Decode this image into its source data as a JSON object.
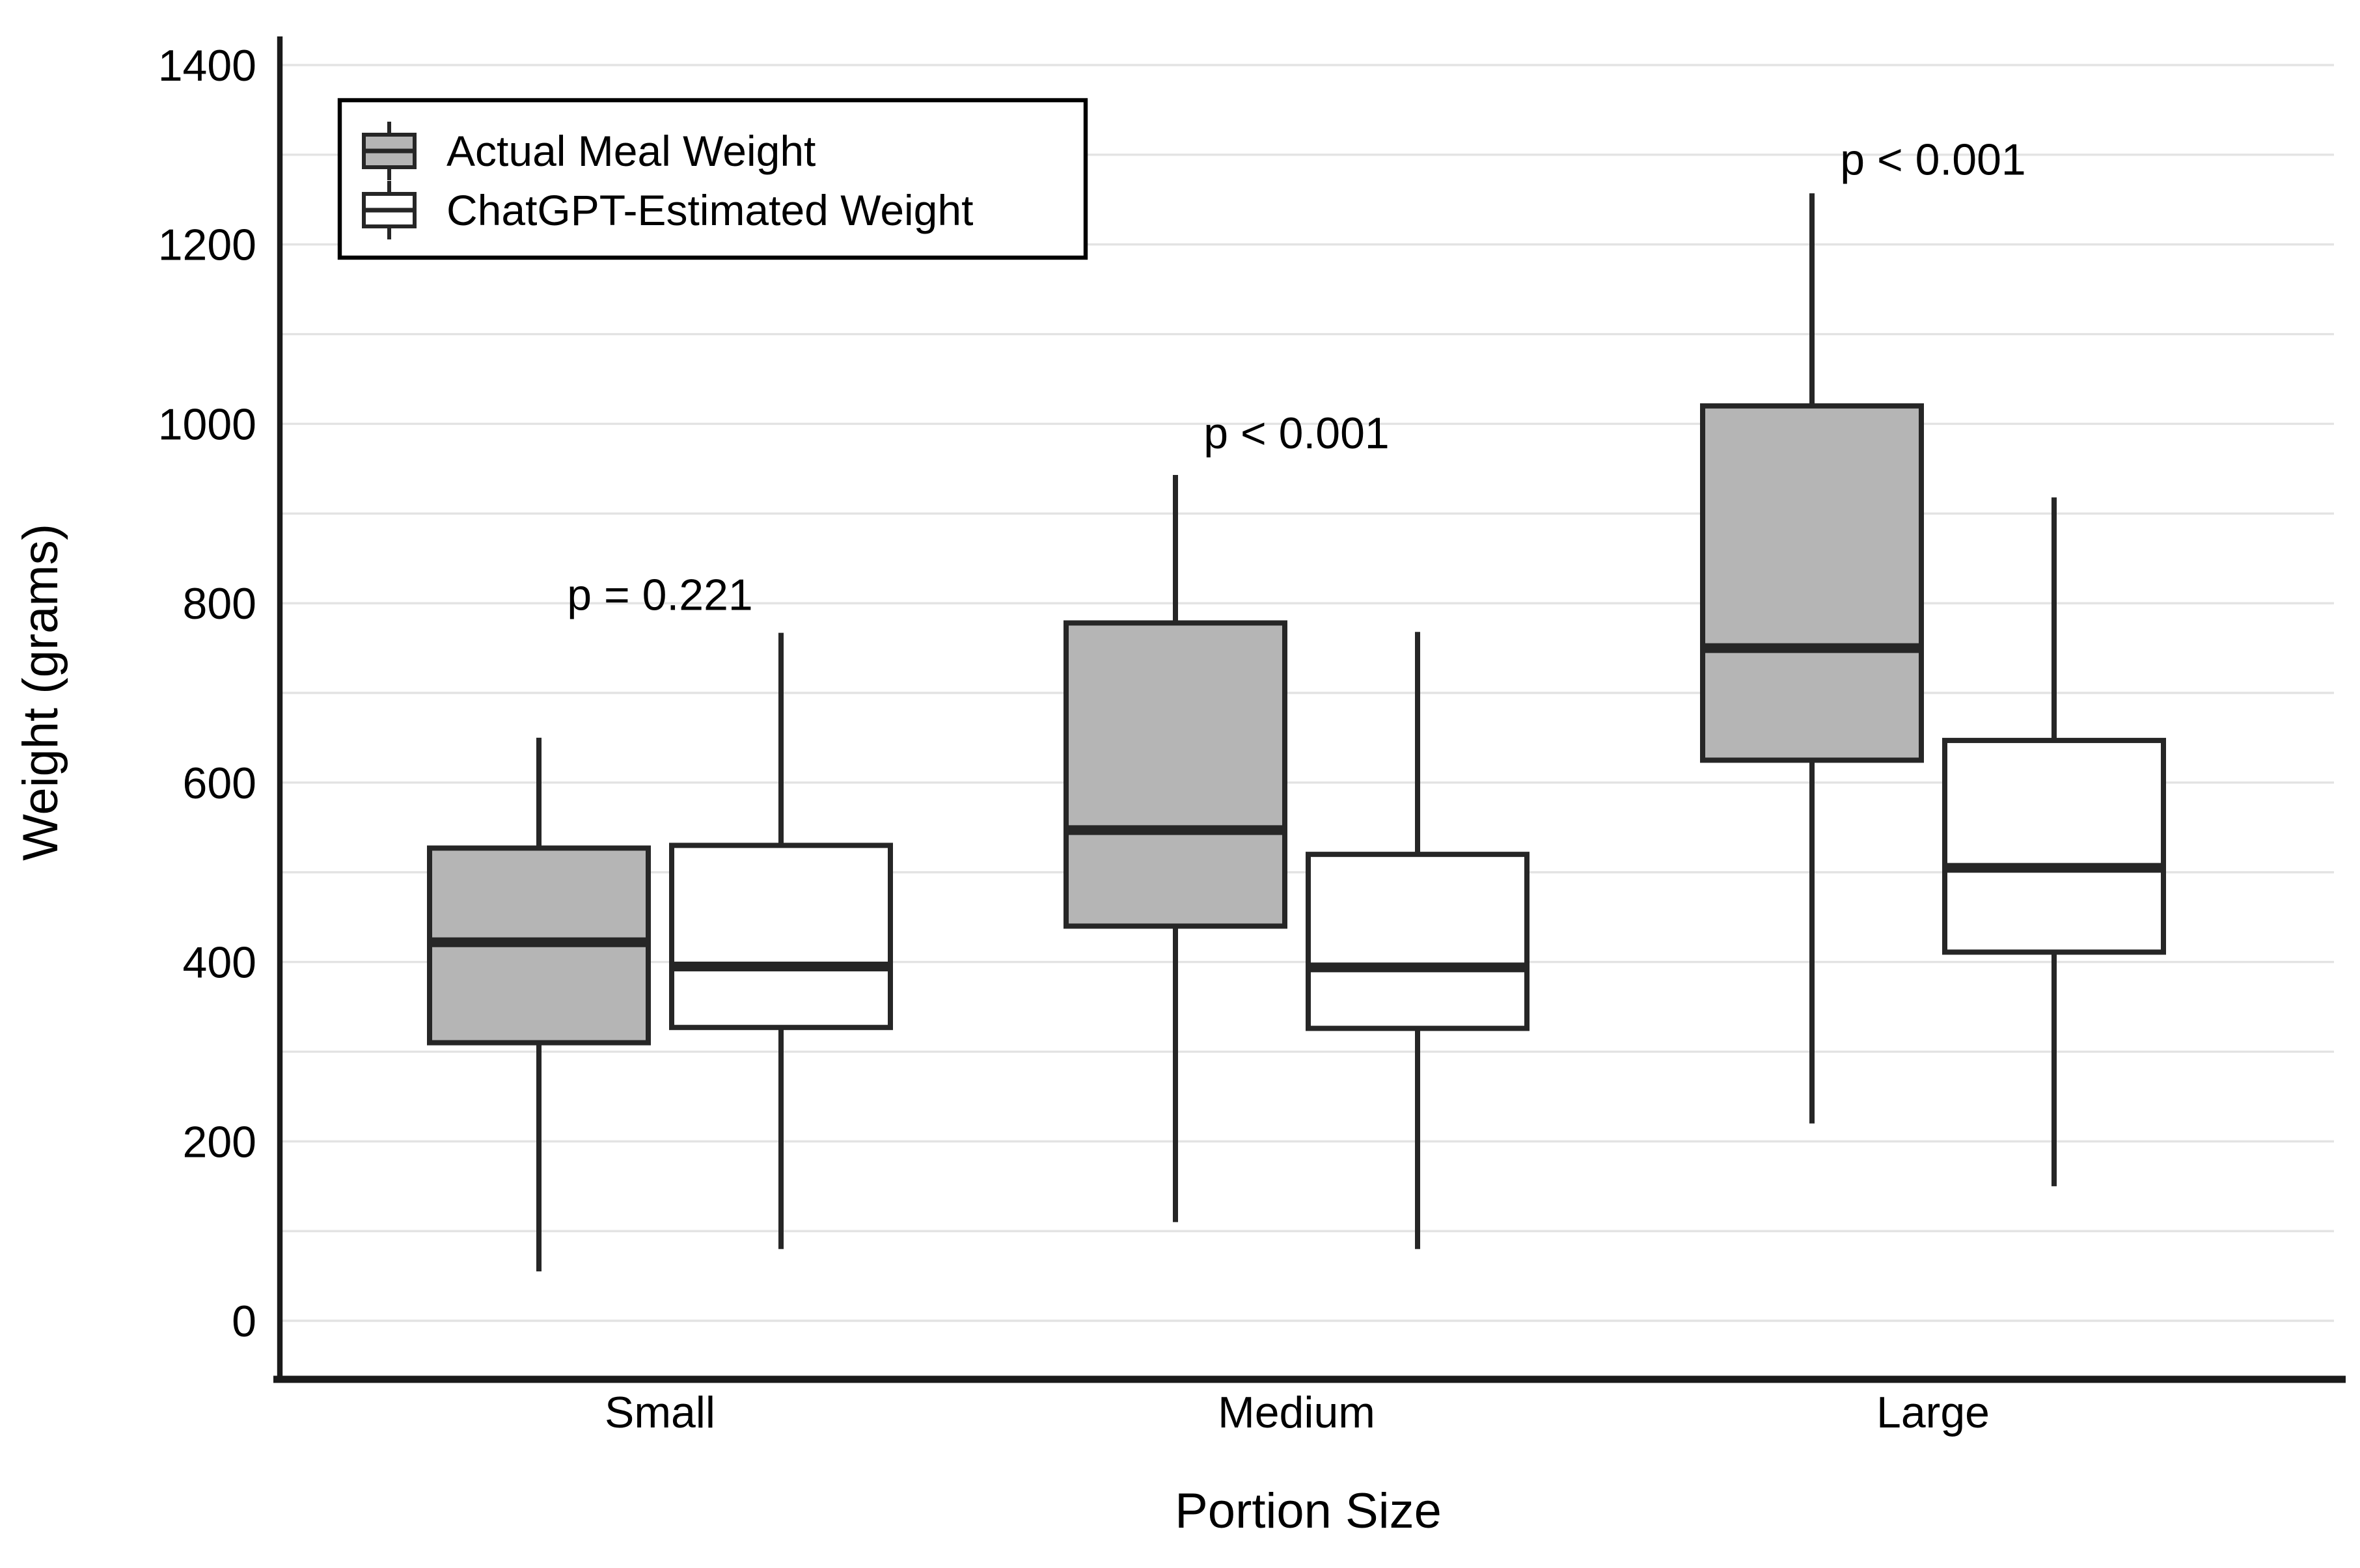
{
  "chart_data": {
    "type": "boxplot",
    "title": "",
    "xlabel": "Portion Size",
    "ylabel": "Weight (grams)",
    "ylim": [
      0,
      1400
    ],
    "y_ticks": [
      0,
      200,
      400,
      600,
      800,
      1000,
      1200,
      1400
    ],
    "gridline_interval": 100,
    "grid": "horizontal",
    "legend_position": "top-left",
    "categories": [
      "Small",
      "Medium",
      "Large"
    ],
    "series": [
      {
        "name": "Actual Meal Weight",
        "fill": "#b5b5b5",
        "boxes": [
          {
            "category": "Small",
            "whisker_low": 55,
            "q1": 310,
            "median": 422,
            "q3": 527,
            "whisker_high": 650
          },
          {
            "category": "Medium",
            "whisker_low": 110,
            "q1": 440,
            "median": 547,
            "q3": 778,
            "whisker_high": 943
          },
          {
            "category": "Large",
            "whisker_low": 220,
            "q1": 625,
            "median": 750,
            "q3": 1020,
            "whisker_high": 1257
          }
        ]
      },
      {
        "name": "ChatGPT-Estimated Weight",
        "fill": "#ffffff",
        "boxes": [
          {
            "category": "Small",
            "whisker_low": 80,
            "q1": 327,
            "median": 395,
            "q3": 530,
            "whisker_high": 767
          },
          {
            "category": "Medium",
            "whisker_low": 80,
            "q1": 326,
            "median": 394,
            "q3": 520,
            "whisker_high": 768
          },
          {
            "category": "Large",
            "whisker_low": 150,
            "q1": 411,
            "median": 505,
            "q3": 647,
            "whisker_high": 918
          }
        ]
      }
    ],
    "annotations": [
      {
        "category": "Small",
        "text": "p = 0.221",
        "y_value": 810
      },
      {
        "category": "Medium",
        "text": "p < 0.001",
        "y_value": 990
      },
      {
        "category": "Large",
        "text": "p < 0.001",
        "y_value": 1295
      }
    ],
    "colors": {
      "box_outline": "#262626",
      "median_line": "#262626",
      "whisker": "#262626",
      "gridline": "#e3e3e3",
      "axis": "#1a1a1a",
      "text": "#000000",
      "actual_fill": "#b5b5b5",
      "estimated_fill": "#ffffff",
      "background": "#ffffff"
    }
  },
  "legend": {
    "items": [
      {
        "label": "Actual Meal Weight"
      },
      {
        "label": "ChatGPT-Estimated Weight"
      }
    ]
  }
}
